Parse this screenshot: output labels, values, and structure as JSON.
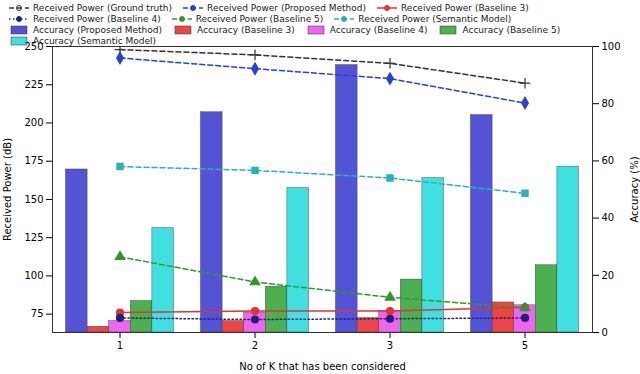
{
  "chart_data": {
    "type": "combo",
    "x_label": "No of K that has been considered",
    "y_label": "Received Power (dB)",
    "y2_label": "Accuracy (%)",
    "categories": [
      "1",
      "2",
      "3",
      "5"
    ],
    "ylim": [
      63,
      250
    ],
    "yticks": [
      75,
      100,
      125,
      150,
      175,
      200,
      225,
      250
    ],
    "y2lim": [
      0,
      100
    ],
    "y2ticks": [
      0,
      20,
      40,
      60,
      80,
      100
    ],
    "series": [
      {
        "name": "Received Power (Ground truth)",
        "type": "line",
        "axis": "y",
        "color": "#333333",
        "marker": "plus",
        "line_style": "dashed",
        "values": [
          248,
          244.5,
          239,
          226
        ]
      },
      {
        "name": "Received Power (Proposed Method)",
        "type": "line",
        "axis": "y",
        "color": "#2342d8",
        "marker": "diamond",
        "line_style": "dashed",
        "values": [
          242.5,
          235.5,
          229,
          213
        ]
      },
      {
        "name": "Received Power (Baseline 3)",
        "type": "line",
        "axis": "y",
        "color": "#e8312f",
        "marker": "circle",
        "line_style": "solid",
        "values": [
          76,
          77,
          77,
          79.5
        ]
      },
      {
        "name": "Received Power (Baseline 4)",
        "type": "line",
        "axis": "y",
        "color": "#1a237e",
        "marker": "circle",
        "line_style": "dotted",
        "values": [
          72.5,
          71.5,
          72,
          72.5
        ]
      },
      {
        "name": "Received Power (Baseline 5)",
        "type": "line",
        "axis": "y",
        "color": "#2e9a2e",
        "marker": "triangle",
        "line_style": "dashed",
        "values": [
          112.5,
          96,
          86,
          79
        ]
      },
      {
        "name": "Received Power (Semantic Model)",
        "type": "line",
        "axis": "y",
        "color": "#26b5b5",
        "marker": "square",
        "line_style": "dashed",
        "values": [
          171.5,
          169,
          164,
          154
        ]
      },
      {
        "name": "Accuracy (Proposed Method)",
        "type": "bar",
        "axis": "y2",
        "color": "#5353d6",
        "values": [
          57,
          77,
          93.5,
          76
        ]
      },
      {
        "name": "Accuracy (Baseline 3)",
        "type": "bar",
        "axis": "y2",
        "color": "#ee4444",
        "values": [
          2,
          4,
          5,
          10.5
        ]
      },
      {
        "name": "Accuracy (Baseline 4)",
        "type": "bar",
        "axis": "y2",
        "color": "#ee66ee",
        "values": [
          4,
          7,
          7.5,
          9.5
        ]
      },
      {
        "name": "Accuracy (Baseline 5)",
        "type": "bar",
        "axis": "y2",
        "color": "#4caf50",
        "values": [
          11,
          16,
          18.5,
          23.5
        ]
      },
      {
        "name": "Accuracy (Semantic Model)",
        "type": "bar",
        "axis": "y2",
        "color": "#40e0e0",
        "values": [
          36.5,
          50.5,
          54,
          58
        ]
      }
    ]
  }
}
